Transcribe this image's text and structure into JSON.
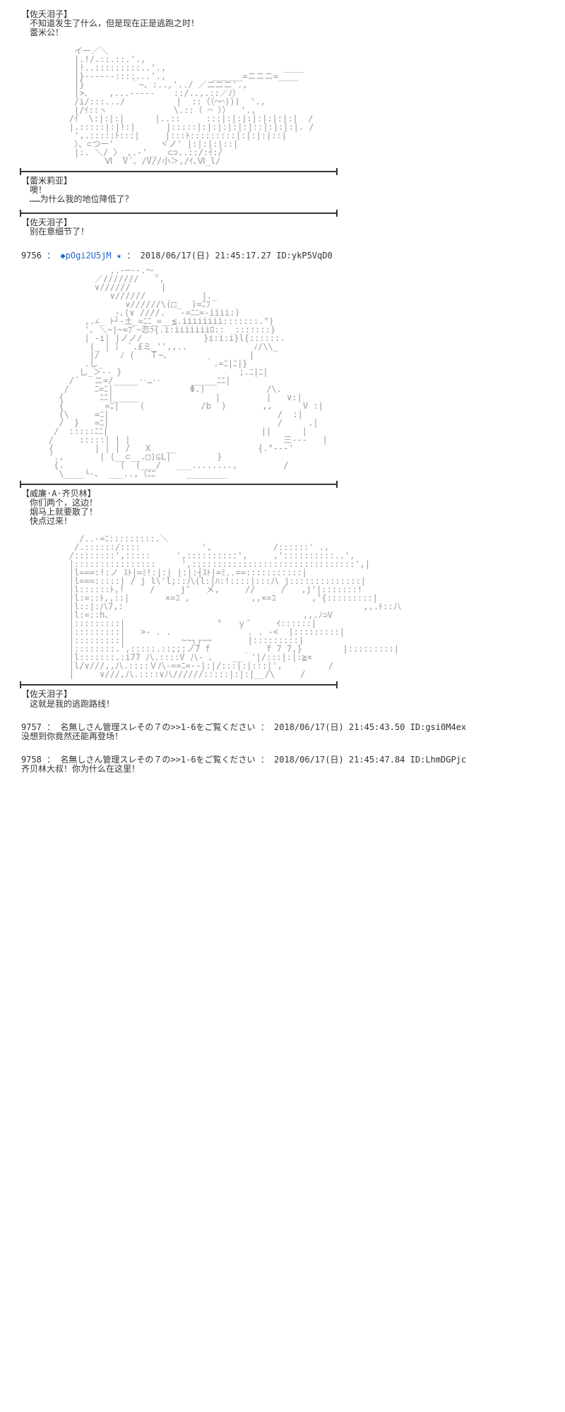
{
  "colors": {
    "text": "#333333",
    "ascii": "#999999",
    "link": "#2266cc",
    "bg": "#ffffff",
    "divider": "#333333"
  },
  "blocks": {
    "b1": {
      "name": "【佐天泪子】",
      "line1": "不知道发生了什么，但是现在正是逃跑之时！",
      "line2": "蕾米公！"
    },
    "ascii1": "         イー／＼\n         |.!/.::.::.'.,\n         |!..:::::::::..'.,                       ____\n         |}------::::...'.,         ______=ニニニ=____\n         |}         ｀~、:...'../ ／ニニニ'.,\n         |>､    ,...-----  ｀::/..,.::／ﾉ）\n         /i/:::.../          |  ::（（⌒⌒)))  '.,\n         |/ｲ::ヽ             \\.::（ ⌒ ））  '.,  \n        /ｲ  \\:|:|:|      |..::     :::|:|:|:|:|:|:|:|  /\n        |.:::::|:|!:|      |:::::|:|:|:|:|:|::|:|:|:|. /\n         ',.:::::ﾄ:::|     |:::ﾄ:::::::::|:|:|:|::|\n         〉、⊂つー'         ヾノ' |:|:|:|::|\n         |:. ＼/ 〉_,.-'__  ⊂⊃..::/:ｲ:/\n               Ⅵ  V´、/V//小＞,/ｲ､Ⅵ_l/",
    "b2": {
      "name": "【蕾米莉亚】",
      "line1": "噢！",
      "line2": "……为什么我的地位降低了？"
    },
    "b3": {
      "name": "【佐天泪子】",
      "line1": "别在意细节了！"
    },
    "post1": {
      "num": "9756",
      "trip": "◆pOgi2U5jM",
      "star": "★",
      "date": "2018/06/17(日) 21:45:17.27",
      "id": "ID:ykP5VqD0"
    },
    "ascii2": "                ,.-─--.～_\n             ／///////   ',\n             ∨//////      |\n                ∨//////           |._\n                   ∨//////\\(□_  )=ﾆﾌ\n                 -､(∨ ////.   -=ﾆﾆ=-iiii:)\n           ,.∠_ ﾄ┘-土_=ﾆﾆ_=__≦.iiiiiiii:::::::.°)\n           '､ ＼~|~=ﾌﾞ~恋ﾗ{.i:iiiiiiiﾛ::  :::::::} \n           | -i| |ノノ/            }i:i:i}l{::::::.\n            (_ | ） ﾞ.£ミ_'',,..             ﾉ/\\\\_\n            |/    ﾉ (   Ｔ~､                |\n           .し_                    ｀.=ﾆ|ﾆ|}\n          し_＞-- }                       ;.ﾆ|ﾆ|\n        /´   ニ=/_____‥…‥      _____ﾆﾆ|\n       /     ﾆ=ﾆ|               Φ.)            /\\.\n      {       ﾆﾆ|_____               |         |   ∨:|\n      {        =ﾆ|    (           /b  )       ,,      V :|\n      {\\     =ﾆ|                                 /  :|\n      /  }   =ﾆ|                                 /     .|\n     /  :::::ﾆﾆ|                              ||      |\n    /     :::::| | |                              三---   |\n    {        | | | /   X   __                {.°---'\n    '.,       | (__⊂__.□)⊆L|         }\n     {.           (  (___/   ___........,         /\n      \\____└-、 ___..,（ﾆﾆ      ________",
    "b4": {
      "name": "【威廉·A·齐贝林】",
      "line1": "你们两个，这边！",
      "line2": "烟马上就要散了！",
      "line3": "快点过来！"
    },
    "ascii3": "          /..-=ﾆ:::::::::.＼\n         /.::::::/::::            ',            /::::::' .,\n        /::::::::',:::::     ',::::::::::',     ,'::::::::::..',\n        |::::::::::::::::     ',::::::::::::::::::::::::::::::::',|\n        |l===:!:ノ ｽﾄ|=ﾐ!:|:| |:|:┤ｽﾄ|=ﾐ..==:::::::::::|\n        |l===:::::| / j l\\'l;::八(l:|ﾊ:!::::|:::八 j::::::::::::::|\n        |l::::::ﾄ,!     /     j″   メ,     //     /   ,j'|:::::::!\n        |l:=::ﾄ,,::|       ×=ｺ ,            ,,×=ｺ       ,'{:::::::::|\n        |l::|:八7,:                                               ,,.ﾄ::八\n        |l:=::h､                                      ,,.ﾉ⊃V\n        |:::::::::|                  °   ｙ″     ｲ::::::|\n        |:::::::::|   >- . .               . . -<  |:::::::::|\n        |:::::::::|           ~~┐┌~~       |:::::::::|\n        |::::::::.',:::::.::;;;ノ7 f           f 7 7,}        |:::::::::|\n        |l:::::::.:i77 八.::::V 八- 、   __｀'|/:::|:|:≧×\n        |l/∨///,,八.::::Ｖ八-==ﾆ=--|:|/:::|:|:::|',         /\n        |     ∨///,八.::::∨八//////:::::|:|:|__/\\     /",
    "b5": {
      "name": "【佐天泪子】",
      "line1": "这就是我的逃跑路线！"
    },
    "comment1": {
      "num": "9757",
      "author": "名無しさん管理スレその７の>>1-6をご覧ください",
      "date": "2018/06/17(日) 21:45:43.50",
      "id": "ID:gsi0M4ex",
      "body": "没想到你竟然还能再登场！"
    },
    "comment2": {
      "num": "9758",
      "author": "名無しさん管理スレその７の>>1-6をご覧ください",
      "date": "2018/06/17(日) 21:45:47.84",
      "id": "ID:LhmDGPjc",
      "body": "齐贝林大叔！你为什么在这里！"
    }
  }
}
